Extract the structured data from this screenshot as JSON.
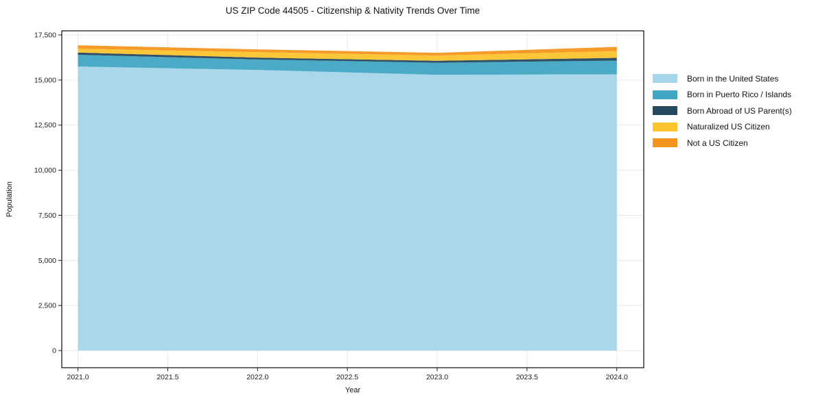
{
  "title": "US ZIP Code 44505 - Citizenship & Nativity Trends Over Time",
  "axes": {
    "x_label": "Year",
    "y_label": "Population",
    "x_tick_labels": [
      "2021.0",
      "2021.5",
      "2022.0",
      "2022.5",
      "2023.0",
      "2023.5",
      "2024.0"
    ],
    "y_tick_labels": [
      "0",
      "2,500",
      "5,000",
      "7,500",
      "10,000",
      "12,500",
      "15,000",
      "17,500"
    ]
  },
  "chart_data": {
    "type": "area",
    "stacked": true,
    "title": "US ZIP Code 44505 - Citizenship & Nativity Trends Over Time",
    "xlabel": "Year",
    "ylabel": "Population",
    "x": [
      2021,
      2022,
      2023,
      2024
    ],
    "x_ticks": [
      2021,
      2021.5,
      2022,
      2022.5,
      2023,
      2023.5,
      2024
    ],
    "y_ticks": [
      0,
      2500,
      5000,
      7500,
      10000,
      12500,
      15000,
      17500
    ],
    "xlim": [
      2020.91,
      2024.15
    ],
    "ylim": [
      -950,
      17730
    ],
    "grid": true,
    "legend_position": "right",
    "series": [
      {
        "name": "Born in the United States",
        "color": "#a5d5e8",
        "values": [
          15750,
          15560,
          15290,
          15320
        ]
      },
      {
        "name": "Born in Puerto Rico / Islands",
        "color": "#41a6c3",
        "values": [
          650,
          580,
          670,
          760
        ]
      },
      {
        "name": "Born Abroad of US Parent(s)",
        "color": "#25495e",
        "values": [
          125,
          105,
          110,
          150
        ]
      },
      {
        "name": "Naturalized US Citizen",
        "color": "#fcc32e",
        "values": [
          215,
          305,
          290,
          380
        ]
      },
      {
        "name": "Not a US Citizen",
        "color": "#f6951e",
        "values": [
          190,
          150,
          150,
          230
        ]
      }
    ]
  },
  "style": {
    "grid_color": "#e9e9e9",
    "frame_color": "#1a1a1a",
    "tick_color": "#1a1a1a",
    "text_color": "#1a1a1a"
  }
}
